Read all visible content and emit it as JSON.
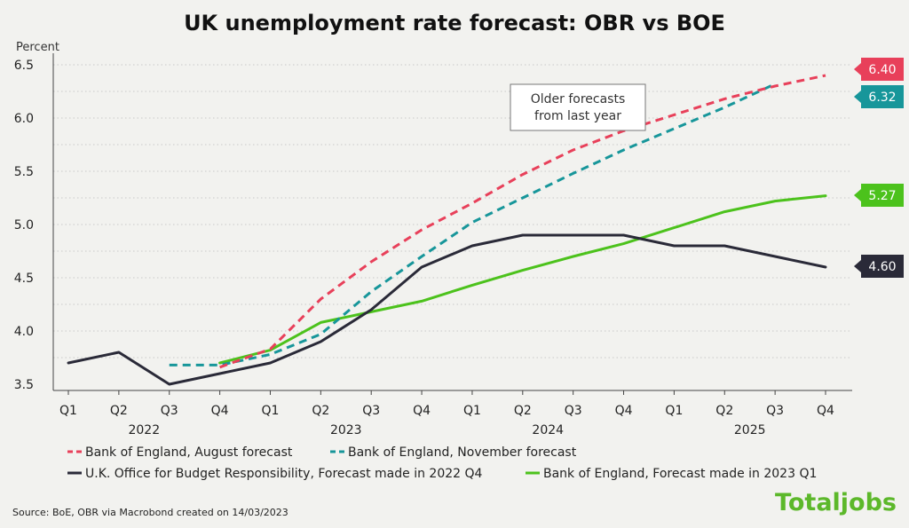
{
  "chart_data": {
    "type": "line",
    "title": "UK unemployment rate forecast: OBR vs BOE",
    "ylabel": "Percent",
    "ylim": [
      3.5,
      6.5
    ],
    "yticks": [
      "3.5",
      "4.0",
      "4.5",
      "5.0",
      "5.5",
      "6.0",
      "6.5"
    ],
    "categories": [
      "Q1",
      "Q2",
      "Q3",
      "Q4",
      "Q1",
      "Q2",
      "Q3",
      "Q4",
      "Q1",
      "Q2",
      "Q3",
      "Q4",
      "Q1",
      "Q2",
      "Q3",
      "Q4"
    ],
    "years": [
      "2022",
      "2023",
      "2024",
      "2025"
    ],
    "grid": "horizontal dotted",
    "legend_position": "bottom",
    "series": [
      {
        "name": "Bank of England, August forecast",
        "color": "#e8405a",
        "dash": "dashed",
        "values": [
          null,
          null,
          null,
          3.66,
          3.83,
          4.3,
          4.65,
          4.95,
          5.2,
          5.47,
          5.7,
          5.88,
          6.03,
          6.18,
          6.3,
          6.4
        ],
        "end_label": "6.40"
      },
      {
        "name": "Bank of England, November forecast",
        "color": "#17969a",
        "dash": "dashed",
        "values": [
          null,
          null,
          3.68,
          3.68,
          3.78,
          3.97,
          4.37,
          4.7,
          5.02,
          5.25,
          5.48,
          5.7,
          5.9,
          6.1,
          6.32,
          null
        ],
        "end_label": "6.32"
      },
      {
        "name": "U.K. Office for Budget Responsibility, Forecast made in 2022 Q4",
        "color": "#2a2a38",
        "dash": "solid",
        "values": [
          3.7,
          3.8,
          3.5,
          3.6,
          3.7,
          3.9,
          4.2,
          4.6,
          4.8,
          4.9,
          4.9,
          4.9,
          4.8,
          4.8,
          4.7,
          4.6
        ],
        "end_label": "4.60"
      },
      {
        "name": "Bank of England, Forecast made in 2023 Q1",
        "color": "#4cc21c",
        "dash": "solid",
        "values": [
          null,
          null,
          null,
          3.7,
          3.82,
          4.08,
          4.18,
          4.28,
          4.43,
          4.57,
          4.7,
          4.82,
          4.97,
          5.12,
          5.22,
          5.27
        ],
        "end_label": "5.27"
      }
    ],
    "annotation": [
      "Older forecasts",
      "from last year"
    ]
  },
  "source": "Source: BoE, OBR via Macrobond created on 14/03/2023",
  "logo": "Totaljobs"
}
